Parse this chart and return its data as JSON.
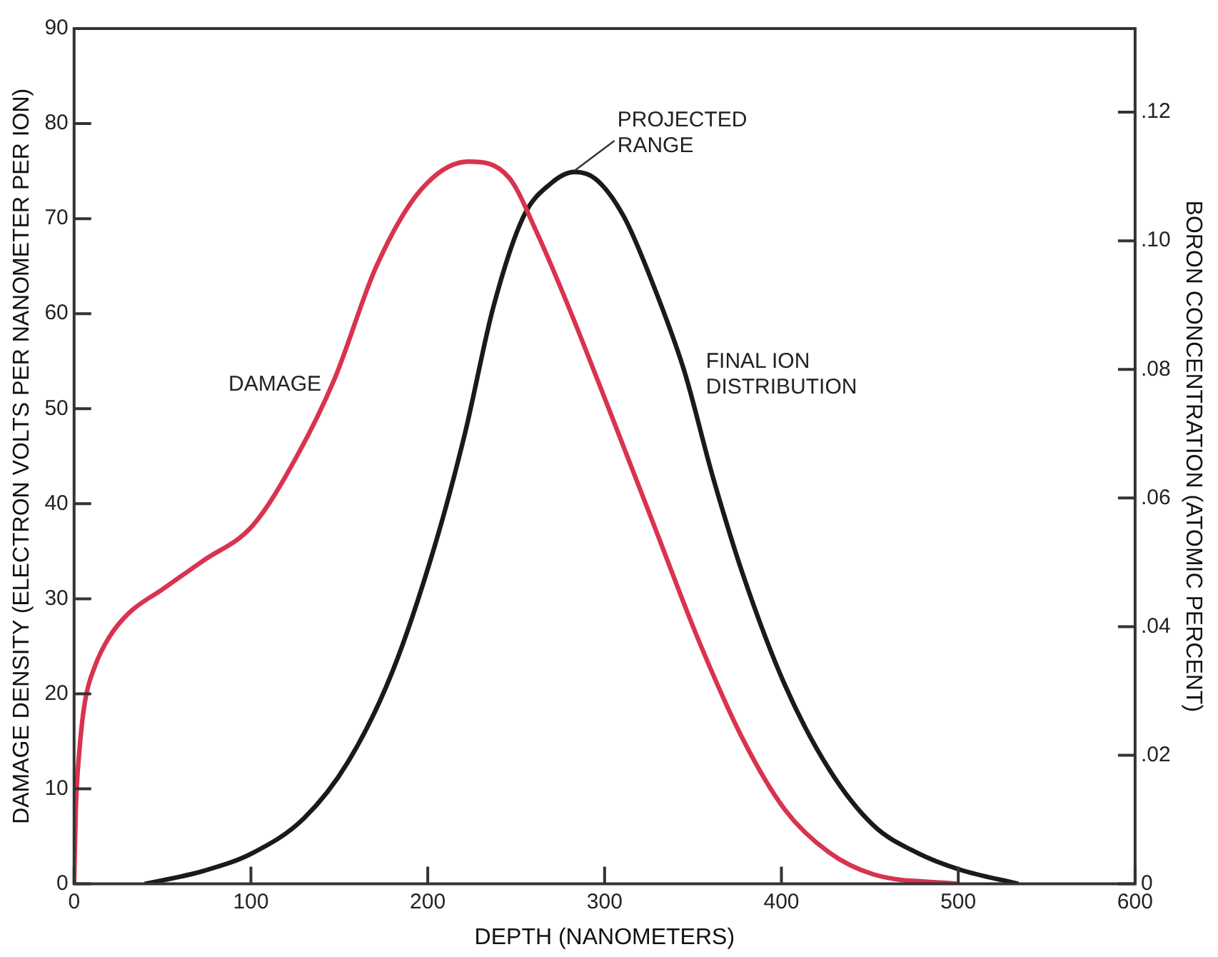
{
  "chart_data": {
    "type": "line",
    "xlabel": "DEPTH (NANOMETERS)",
    "ylabel": "DAMAGE DENSITY (ELECTRON VOLTS PER NANOMETER PER ION)",
    "y2label": "BORON CONCENTRATION (ATOMIC PERCENT)",
    "xlim": [
      0,
      600
    ],
    "xticks": [
      0,
      100,
      200,
      300,
      400,
      500,
      600
    ],
    "ylim": [
      0,
      90
    ],
    "yticks": [
      0,
      10,
      20,
      30,
      40,
      50,
      60,
      70,
      80,
      90
    ],
    "y2lim": [
      0,
      0.133
    ],
    "y2ticks": [
      {
        "value": 0,
        "label": "0"
      },
      {
        "value": 0.02,
        "label": ".02"
      },
      {
        "value": 0.04,
        "label": ".04"
      },
      {
        "value": 0.06,
        "label": ".06"
      },
      {
        "value": 0.08,
        "label": ".08"
      },
      {
        "value": 0.1,
        "label": ".10"
      },
      {
        "value": 0.12,
        "label": ".12"
      }
    ],
    "grid": false,
    "legend": false,
    "marker": "none",
    "line_style": "solid",
    "series": [
      {
        "name": "DAMAGE",
        "color": "#d8334f",
        "x": [
          0,
          1,
          3,
          6,
          12,
          20,
          31,
          50,
          73,
          101,
          126,
          147,
          171,
          196,
          223,
          246,
          262,
          279,
          303,
          328,
          353,
          378,
          402,
          427,
          452,
          500
        ],
        "values": [
          0,
          8,
          14,
          19,
          23,
          26,
          28.5,
          31,
          34,
          37.7,
          45,
          53,
          65,
          73,
          76,
          74.3,
          68.4,
          61,
          49.7,
          37.7,
          25.7,
          15.3,
          7.8,
          3.3,
          1,
          0
        ]
      },
      {
        "name": "FINAL ION DISTRIBUTION",
        "color": "#1a1a1a",
        "axis": "y2",
        "x": [
          40,
          73,
          101,
          130,
          155,
          180,
          204,
          221,
          237,
          254,
          270,
          283,
          295,
          311,
          328,
          345,
          361,
          378,
          402,
          427,
          452,
          477,
          501,
          534
        ],
        "values": [
          0,
          0.002,
          0.0048,
          0.0102,
          0.019,
          0.033,
          0.0526,
          0.07,
          0.0896,
          0.1037,
          0.109,
          0.1107,
          0.1096,
          0.1037,
          0.0928,
          0.0798,
          0.0635,
          0.0483,
          0.0309,
          0.0178,
          0.0091,
          0.0048,
          0.0022,
          0
        ]
      }
    ],
    "annotations": [
      {
        "text": "PROJECTED RANGE",
        "x": 283,
        "y": 74.9
      }
    ]
  }
}
